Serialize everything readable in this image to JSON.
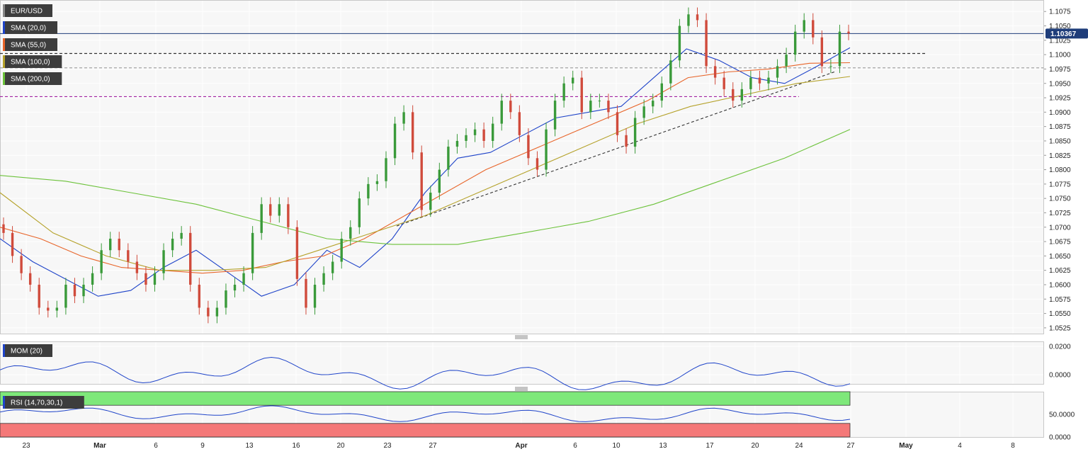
{
  "symbol": "EUR/USD",
  "current_price_label": "1.10367",
  "colors": {
    "up": "#3a9a3a",
    "down": "#d04b3c",
    "sma20": "#1f44c9",
    "sma55": "#e8652a",
    "sma100": "#b5a22b",
    "sma200": "#6cc23a",
    "mom": "#1f44c9",
    "rsi": "#1f44c9",
    "rsi_over": "#7ee87a",
    "rsi_under": "#f47878",
    "resistance": "#333333",
    "support_purple": "#a020a0",
    "trend": "#333333",
    "price_line": "#1f3d7a"
  },
  "indicators": {
    "sma20": "SMA (20,0)",
    "sma55": "SMA (55,0)",
    "sma100": "SMA (100,0)",
    "sma200": "SMA (200,0)",
    "mom": "MOM (20)",
    "rsi": "RSI (14,70,30,1)"
  },
  "x_ticks": [
    {
      "label": "23",
      "bold": false
    },
    {
      "label": "Mar",
      "bold": true
    },
    {
      "label": "6",
      "bold": false
    },
    {
      "label": "9",
      "bold": false
    },
    {
      "label": "13",
      "bold": false
    },
    {
      "label": "16",
      "bold": false
    },
    {
      "label": "20",
      "bold": false
    },
    {
      "label": "23",
      "bold": false
    },
    {
      "label": "27",
      "bold": false
    },
    {
      "label": "Apr",
      "bold": true
    },
    {
      "label": "6",
      "bold": false
    },
    {
      "label": "10",
      "bold": false
    },
    {
      "label": "13",
      "bold": false
    },
    {
      "label": "17",
      "bold": false
    },
    {
      "label": "20",
      "bold": false
    },
    {
      "label": "24",
      "bold": false
    },
    {
      "label": "27",
      "bold": false
    },
    {
      "label": "May",
      "bold": true
    },
    {
      "label": "4",
      "bold": false
    },
    {
      "label": "8",
      "bold": false
    }
  ],
  "price_ticks": [
    "1.1075",
    "1.1050",
    "1.1025",
    "1.1000",
    "1.0975",
    "1.0950",
    "1.0925",
    "1.0900",
    "1.0875",
    "1.0850",
    "1.0825",
    "1.0800",
    "1.0775",
    "1.0750",
    "1.0725",
    "1.0700",
    "1.0675",
    "1.0650",
    "1.0625",
    "1.0600",
    "1.0575",
    "1.0550",
    "1.0525"
  ],
  "mom_ticks": [
    "0.0200",
    "0.0000"
  ],
  "rsi_ticks": [
    "50.0000",
    "0.0000"
  ],
  "chart_data": {
    "type": "candlestick",
    "title": "EUR/USD",
    "ylim": [
      1.0515,
      1.1095
    ],
    "current_price": 1.10367,
    "horizontal_levels": [
      {
        "value": 1.1002,
        "style": "dashed-dark"
      },
      {
        "value": 1.0977,
        "style": "dashed-gray"
      },
      {
        "value": 1.0927,
        "style": "dashed-purple"
      }
    ],
    "trendline": {
      "from": [
        1.0702
      ],
      "to": [
        1.097
      ]
    },
    "candle_closes": [
      1.069,
      1.065,
      1.062,
      1.06,
      1.056,
      1.0555,
      1.056,
      1.06,
      1.058,
      1.06,
      1.062,
      1.066,
      1.068,
      1.066,
      1.064,
      1.062,
      1.06,
      1.062,
      1.066,
      1.068,
      1.069,
      1.06,
      1.056,
      1.0545,
      1.056,
      1.059,
      1.06,
      1.062,
      1.069,
      1.074,
      1.072,
      1.074,
      1.07,
      1.061,
      1.056,
      1.06,
      1.062,
      1.064,
      1.068,
      1.07,
      1.075,
      1.0775,
      1.078,
      1.082,
      1.088,
      1.09,
      1.083,
      1.073,
      1.076,
      1.08,
      1.084,
      1.085,
      1.086,
      1.087,
      1.085,
      1.088,
      1.092,
      1.09,
      1.086,
      1.082,
      1.08,
      1.087,
      1.092,
      1.095,
      1.096,
      1.09,
      1.092,
      1.092,
      1.09,
      1.086,
      1.084,
      1.089,
      1.091,
      1.092,
      1.095,
      1.099,
      1.105,
      1.107,
      1.106,
      1.098,
      1.096,
      1.094,
      1.092,
      1.094,
      1.096,
      1.095,
      1.096,
      1.098,
      1.1,
      1.104,
      1.106,
      1.103,
      1.098,
      1.098,
      1.104,
      1.1037
    ],
    "series": [
      {
        "name": "SMA (20,0)",
        "values": [
          1.068,
          1.064,
          1.061,
          1.058,
          1.059,
          1.063,
          1.066,
          1.062,
          1.058,
          1.06,
          1.066,
          1.063,
          1.068,
          1.076,
          1.082,
          1.083,
          1.086,
          1.089,
          1.09,
          1.091,
          1.096,
          1.101,
          1.099,
          1.096,
          1.095,
          1.098,
          1.1012
        ]
      },
      {
        "name": "SMA (55,0)",
        "values": [
          1.07,
          1.068,
          1.065,
          1.063,
          1.0625,
          1.062,
          1.0625,
          1.064,
          1.065,
          1.068,
          1.072,
          1.076,
          1.08,
          1.083,
          1.086,
          1.089,
          1.092,
          1.096,
          1.097,
          1.0975,
          1.0985,
          1.0986
        ]
      },
      {
        "name": "SMA (100,0)",
        "values": [
          1.076,
          1.069,
          1.065,
          1.0625,
          1.0625,
          1.063,
          1.066,
          1.069,
          1.072,
          1.076,
          1.08,
          1.084,
          1.088,
          1.091,
          1.093,
          1.095,
          1.0962
        ]
      },
      {
        "name": "SMA (200,0)",
        "values": [
          1.079,
          1.078,
          1.076,
          1.074,
          1.071,
          1.068,
          1.067,
          1.067,
          1.069,
          1.071,
          1.074,
          1.078,
          1.082,
          1.087
        ]
      }
    ],
    "mom_ylim": [
      -0.0065,
      0.0235
    ],
    "rsi_ylim": [
      0,
      100
    ],
    "rsi_levels": {
      "overbought": 70,
      "oversold": 30
    }
  }
}
